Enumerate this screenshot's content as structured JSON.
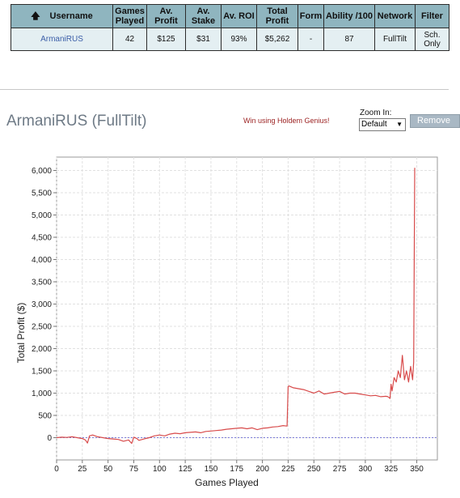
{
  "table": {
    "headers": [
      {
        "key": "username",
        "label": "Username"
      },
      {
        "key": "games",
        "label": "Games Played"
      },
      {
        "key": "av_profit",
        "label": "Av. Profit"
      },
      {
        "key": "av_stake",
        "label": "Av. Stake"
      },
      {
        "key": "av_roi",
        "label": "Av. ROI"
      },
      {
        "key": "total_profit",
        "label": "Total Profit"
      },
      {
        "key": "form",
        "label": "Form"
      },
      {
        "key": "ability",
        "label": "Ability /100"
      },
      {
        "key": "network",
        "label": "Network"
      },
      {
        "key": "filter",
        "label": "Filter"
      }
    ],
    "row": {
      "username": "ArmaniRUS",
      "games": "42",
      "av_profit": "$125",
      "av_stake": "$31",
      "av_roi": "93%",
      "total_profit": "$5,262",
      "form": "-",
      "ability": "87",
      "network": "FullTilt",
      "filter": "Sch. Only"
    }
  },
  "header": {
    "title": "ArmaniRUS (FullTilt)",
    "promo_link": "Win using Holdem Genius!",
    "zoom_label": "Zoom In:",
    "zoom_value": "Default",
    "remove_label": "Remove"
  },
  "colors": {
    "line": "#d84b4b",
    "zero_line": "#7a7ad8",
    "grid": "#e1e1e1",
    "table_header": "#8fb5bf",
    "table_cell": "#e4eff2"
  },
  "chart_data": {
    "type": "line",
    "xlabel": "Games Played",
    "ylabel": "Total Profit ($)",
    "xlim": [
      0,
      370
    ],
    "ylim": [
      -500,
      6300
    ],
    "xticks": [
      0,
      25,
      50,
      75,
      100,
      125,
      150,
      175,
      200,
      225,
      250,
      275,
      300,
      325,
      350
    ],
    "yticks": [
      0,
      500,
      1000,
      1500,
      2000,
      2500,
      3000,
      3500,
      4000,
      4500,
      5000,
      5500,
      6000
    ],
    "ytick_labels": [
      "0",
      "500",
      "1,000",
      "1,500",
      "2,000",
      "2,500",
      "3,000",
      "3,500",
      "4,000",
      "4,500",
      "5,000",
      "5,500",
      "6,000"
    ],
    "grid": true,
    "zero_line": true,
    "series": [
      {
        "name": "",
        "x": [
          0,
          5,
          10,
          15,
          20,
          25,
          28,
          30,
          32,
          35,
          40,
          45,
          50,
          55,
          60,
          65,
          70,
          73,
          75,
          78,
          80,
          85,
          90,
          95,
          100,
          105,
          110,
          115,
          120,
          125,
          130,
          135,
          140,
          145,
          150,
          155,
          160,
          165,
          170,
          175,
          180,
          185,
          190,
          195,
          200,
          205,
          210,
          215,
          220,
          224,
          225,
          226,
          230,
          235,
          240,
          245,
          250,
          255,
          260,
          265,
          270,
          275,
          280,
          285,
          290,
          295,
          300,
          305,
          310,
          315,
          320,
          322,
          324,
          325,
          326,
          328,
          330,
          332,
          334,
          336,
          338,
          340,
          342,
          344,
          346,
          347,
          348
        ],
        "y": [
          0,
          10,
          5,
          20,
          0,
          -20,
          -50,
          -120,
          40,
          60,
          20,
          0,
          -20,
          -30,
          -40,
          -80,
          -50,
          -130,
          10,
          -20,
          -60,
          -30,
          0,
          40,
          60,
          40,
          80,
          100,
          90,
          110,
          120,
          130,
          110,
          140,
          150,
          160,
          170,
          190,
          200,
          210,
          220,
          200,
          220,
          180,
          210,
          220,
          240,
          250,
          270,
          260,
          1150,
          1160,
          1120,
          1100,
          1080,
          1040,
          1000,
          1050,
          980,
          1000,
          1020,
          1040,
          980,
          1000,
          1000,
          980,
          960,
          940,
          950,
          920,
          930,
          920,
          880,
          1200,
          1050,
          1350,
          1250,
          1500,
          1350,
          1850,
          1300,
          1500,
          1250,
          1600,
          1300,
          1700,
          6060
        ]
      }
    ]
  }
}
